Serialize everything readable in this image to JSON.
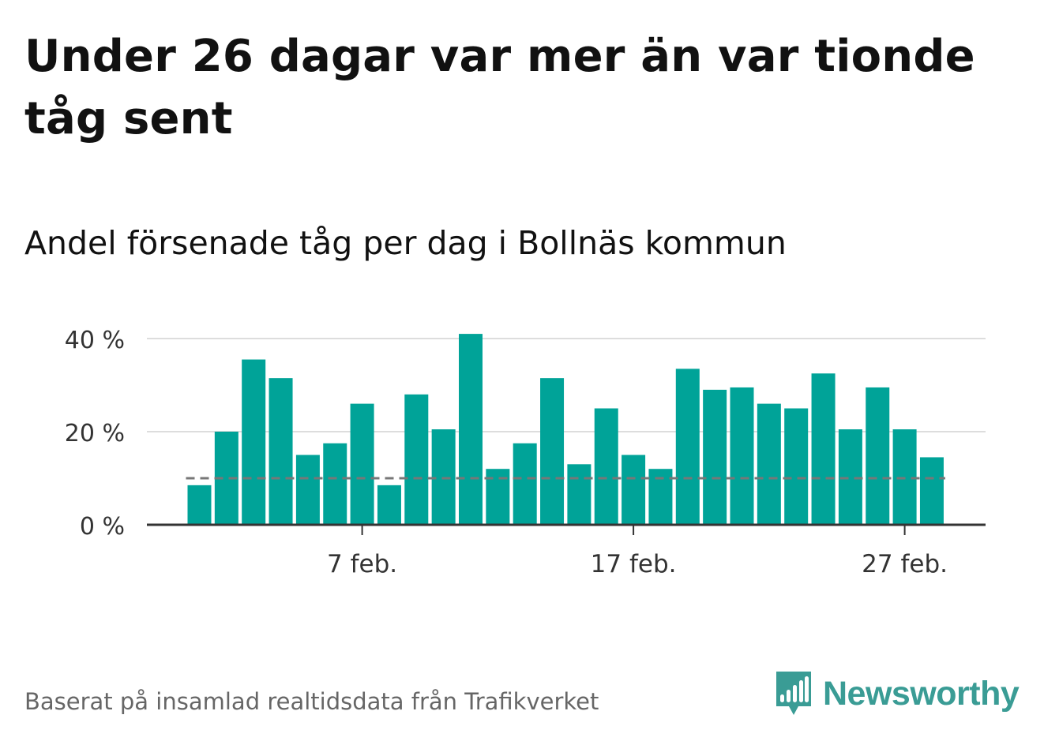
{
  "title": "Under 26 dagar var mer än var tionde tåg sent",
  "source": "Baserat på insamlad realtidsdata från Trafikverket",
  "brand": {
    "name": "Newsworthy",
    "color": "#3a9c95"
  },
  "colors": {
    "bar": "#00a398",
    "grid": "#dddddd",
    "axis": "#333333",
    "reference_line": "#777777"
  },
  "chart_data": {
    "type": "bar",
    "subtitle": "Andel försenade tåg per dag i Bollnäs kommun",
    "x": [
      "1 feb.",
      "2 feb.",
      "3 feb.",
      "4 feb.",
      "5 feb.",
      "6 feb.",
      "7 feb.",
      "8 feb.",
      "9 feb.",
      "10 feb.",
      "11 feb.",
      "12 feb.",
      "13 feb.",
      "14 feb.",
      "15 feb.",
      "16 feb.",
      "17 feb.",
      "18 feb.",
      "19 feb.",
      "20 feb.",
      "21 feb.",
      "22 feb.",
      "23 feb.",
      "24 feb.",
      "25 feb.",
      "26 feb.",
      "27 feb.",
      "28 feb."
    ],
    "values": [
      8.5,
      20,
      35.5,
      31.5,
      15,
      17.5,
      26,
      8.5,
      28,
      20.5,
      41,
      12,
      17.5,
      31.5,
      13,
      25,
      15,
      12,
      33.5,
      29,
      29.5,
      26,
      25,
      32.5,
      20.5,
      29.5,
      20.5,
      14.5
    ],
    "unit": "%",
    "ylim": [
      0,
      44
    ],
    "yticks": [
      0,
      20,
      40
    ],
    "ytick_labels": [
      "0 %",
      "20 %",
      "40 %"
    ],
    "xtick_labels": [
      {
        "x": "7 feb.",
        "label": "7 feb."
      },
      {
        "x": "17 feb.",
        "label": "17 feb."
      },
      {
        "x": "27 feb.",
        "label": "27 feb."
      }
    ],
    "reference_line": {
      "value": 10,
      "style": "dashed"
    },
    "grid": true,
    "legend": "none"
  }
}
